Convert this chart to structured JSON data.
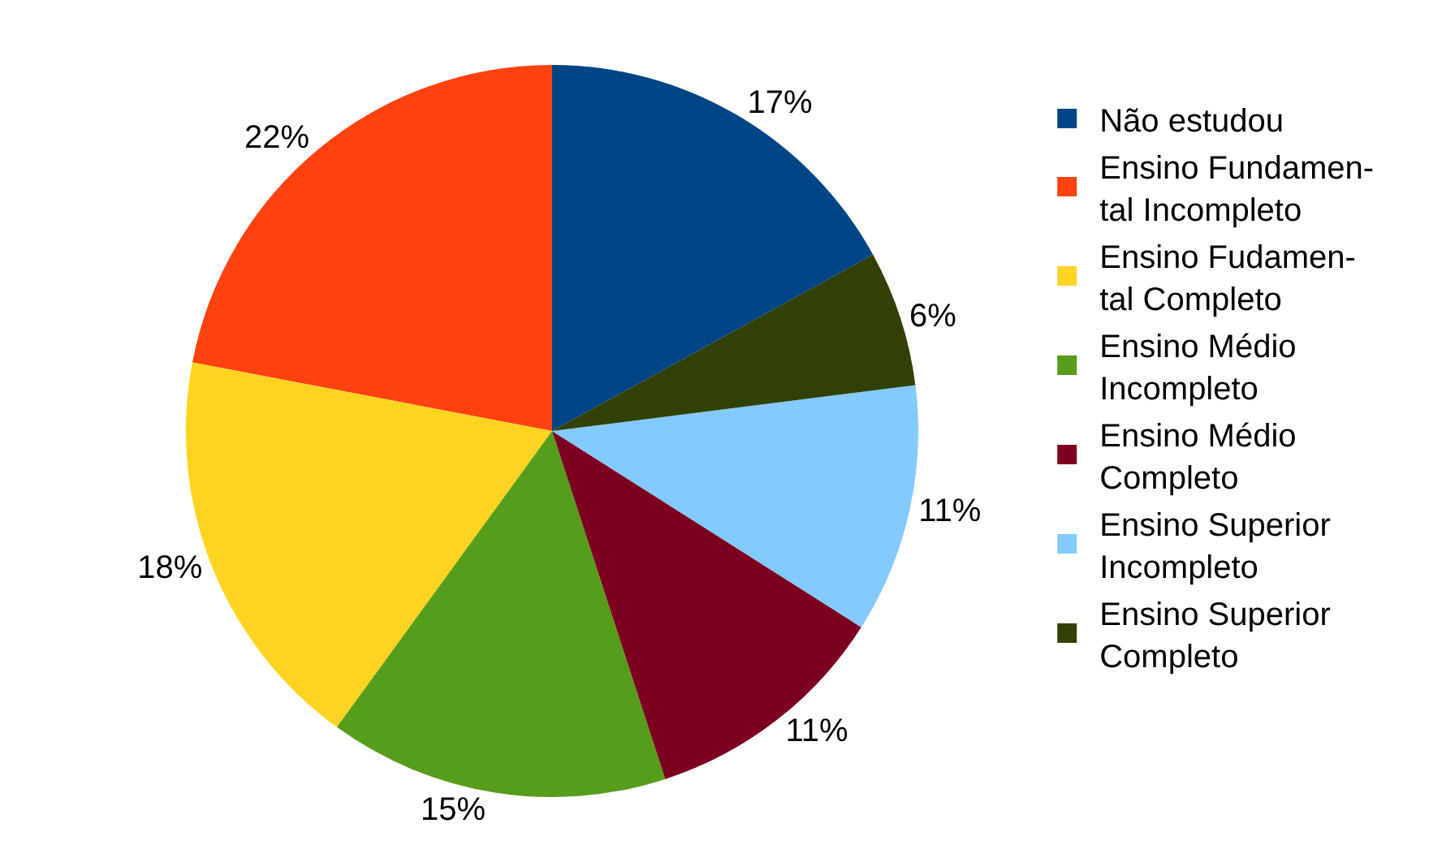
{
  "chart_data": {
    "type": "pie",
    "categories": [
      "Não estudou",
      "Ensino Fundamen-\ntal Incompleto",
      "Ensino Fudamen-\ntal Completo",
      "Ensino Médio\nIncompleto",
      "Ensino Médio\nCompleto",
      "Ensino Superior\nIncompleto",
      "Ensino Superior\nCompleto"
    ],
    "values": [
      17,
      22,
      18,
      15,
      11,
      11,
      6
    ],
    "value_labels": [
      "17%",
      "22%",
      "18%",
      "15%",
      "11%",
      "11%",
      "6%"
    ],
    "colors": [
      "#004586",
      "#ff420e",
      "#ffd320",
      "#579d1c",
      "#7e0021",
      "#83caff",
      "#314004"
    ],
    "legend": "right"
  }
}
